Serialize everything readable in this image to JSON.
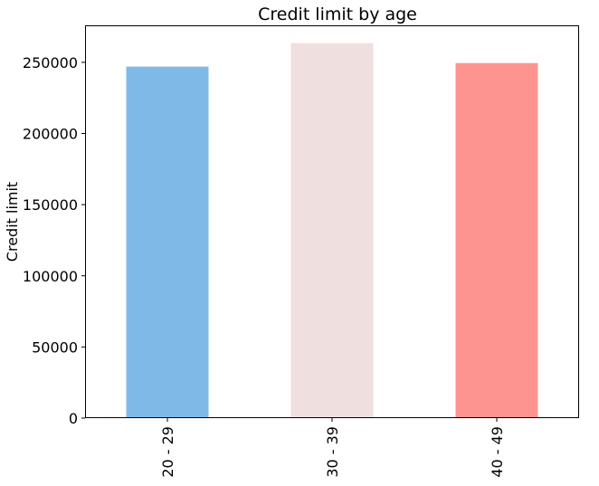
{
  "chart_data": {
    "type": "bar",
    "title": "Credit limit by age",
    "xlabel": "",
    "ylabel": "Credit limit",
    "categories": [
      "20 - 29",
      "30 - 39",
      "40 - 49"
    ],
    "values": [
      247000,
      263500,
      249500
    ],
    "colors": [
      "#7fb9e8",
      "#f0dfdf",
      "#fe9490"
    ],
    "ylim": [
      0,
      276000
    ],
    "yticks": [
      0,
      50000,
      100000,
      150000,
      200000,
      250000
    ],
    "ytick_labels": [
      "0",
      "50000",
      "100000",
      "150000",
      "200000",
      "250000"
    ],
    "grid": false,
    "legend": "none"
  }
}
